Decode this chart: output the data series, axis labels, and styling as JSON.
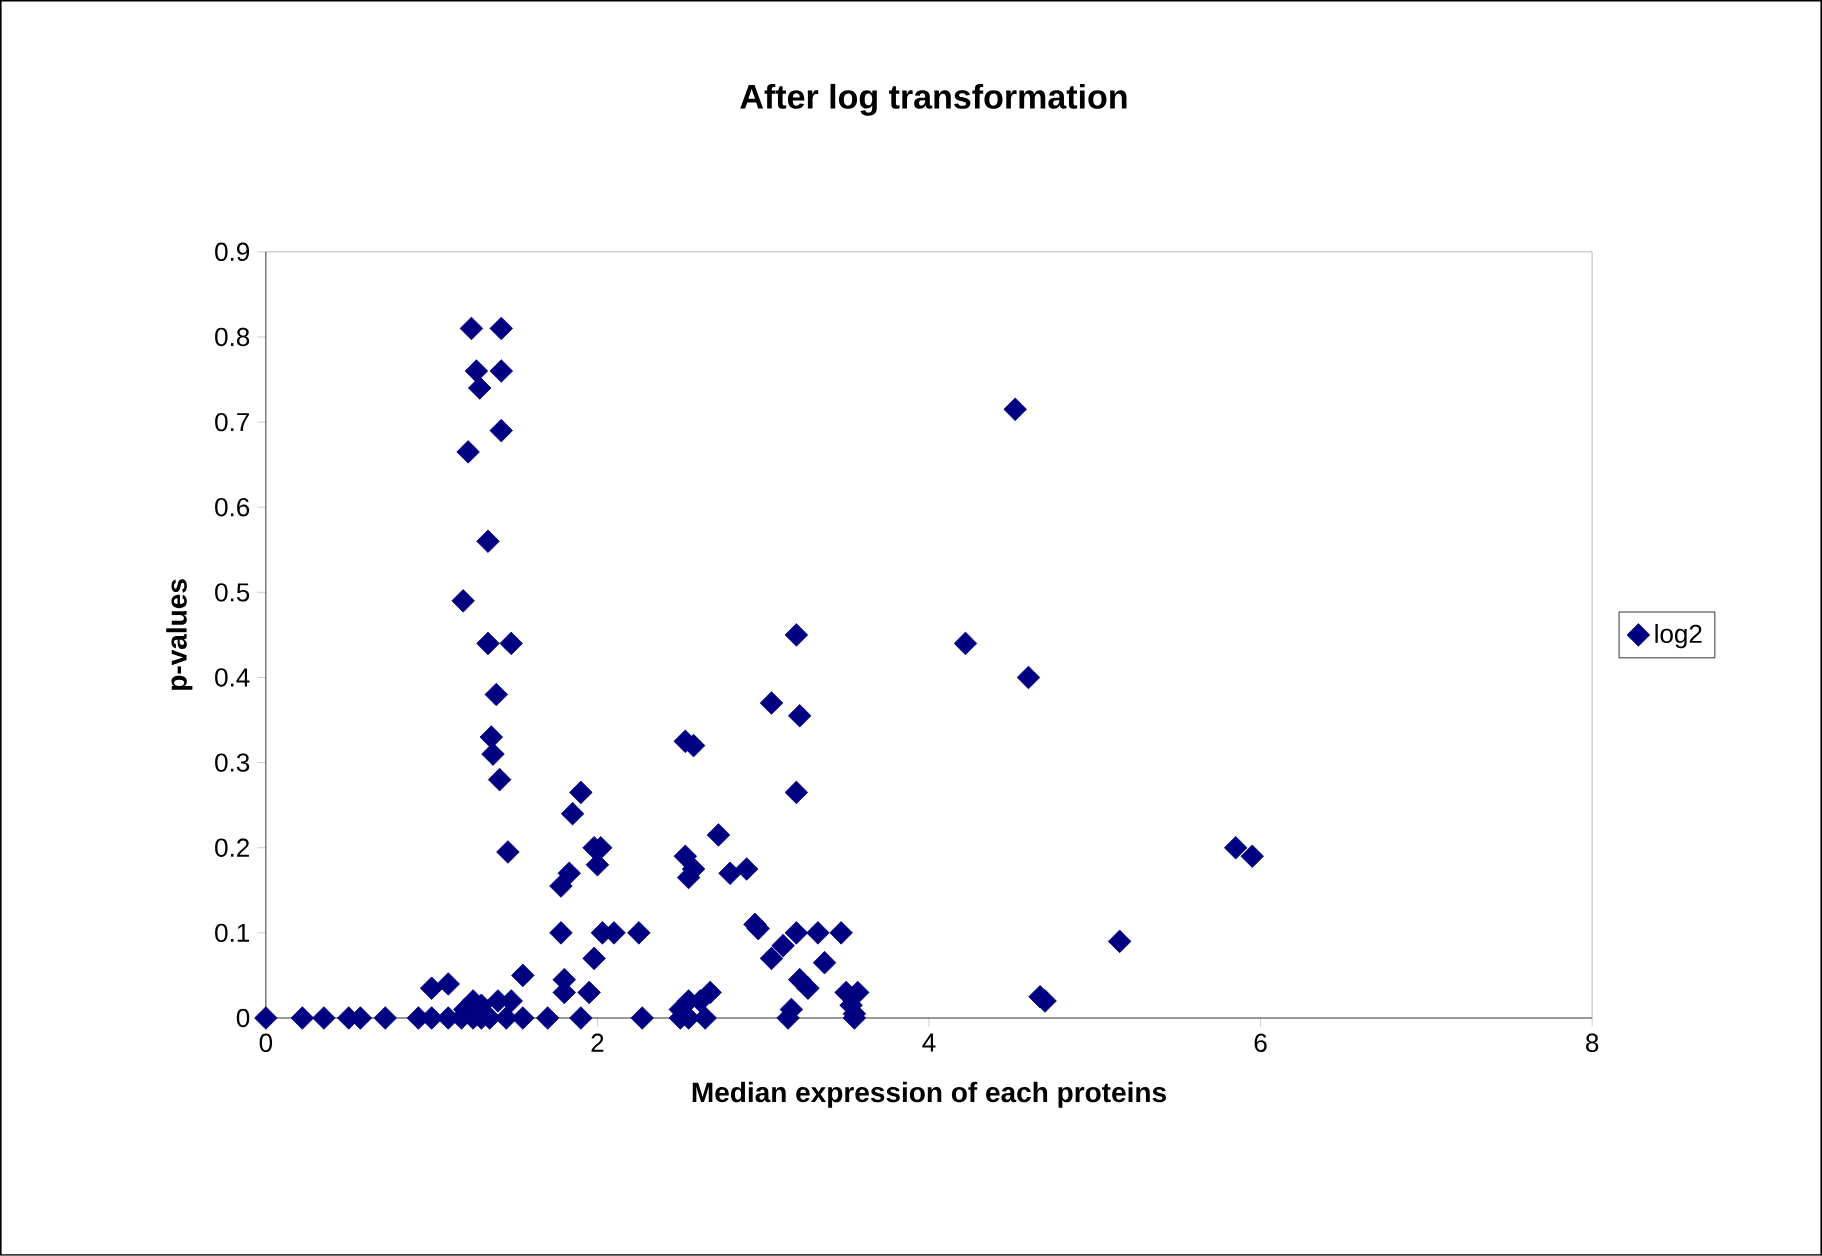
{
  "chart_data": {
    "type": "scatter",
    "title": "After log transformation",
    "xlabel": "Median expression of each proteins",
    "ylabel": "p-values",
    "xlim": [
      0,
      8
    ],
    "xticks": [
      0,
      2,
      4,
      6,
      8
    ],
    "ylim": [
      0,
      0.9
    ],
    "yticks": [
      0,
      0.1,
      0.2,
      0.3,
      0.4,
      0.5,
      0.6,
      0.7,
      0.8,
      0.9
    ],
    "grid": false,
    "legend": "right",
    "marker": "diamond",
    "series": [
      {
        "name": "log2",
        "color": "#000080",
        "x": [
          1.24,
          1.42,
          1.27,
          1.42,
          1.29,
          1.42,
          1.22,
          1.34,
          1.19,
          1.34,
          1.48,
          1.39,
          1.36,
          1.37,
          1.41,
          1.46,
          1.9,
          1.85,
          1.98,
          2.02,
          2.0,
          1.83,
          1.78,
          1.78,
          1.98,
          2.03,
          2.1,
          2.25,
          1.55,
          1.8,
          1.8,
          1.0,
          1.1,
          1.95,
          2.53,
          2.58,
          2.53,
          2.55,
          2.58,
          2.73,
          2.8,
          2.9,
          2.95,
          2.97,
          3.05,
          3.2,
          3.22,
          3.2,
          3.2,
          3.12,
          3.05,
          3.33,
          3.37,
          3.47,
          3.22,
          3.27,
          3.5,
          3.57,
          3.53,
          3.55,
          4.22,
          4.52,
          4.6,
          5.85,
          5.95,
          5.15,
          4.67,
          4.7,
          0,
          0.22,
          0.35,
          0.5,
          0.57,
          0.72,
          0.92,
          1.0,
          1.1,
          1.18,
          1.25,
          1.3,
          1.35,
          1.45,
          1.55,
          1.7,
          1.9,
          2.27,
          2.5,
          2.55,
          2.65,
          3.15,
          3.55,
          1.2,
          1.3,
          1.4,
          1.48,
          1.25,
          2.5,
          2.55,
          2.62,
          2.68,
          3.17
        ],
        "values": [
          0.81,
          0.81,
          0.76,
          0.76,
          0.74,
          0.69,
          0.665,
          0.56,
          0.49,
          0.44,
          0.44,
          0.38,
          0.33,
          0.31,
          0.28,
          0.195,
          0.265,
          0.24,
          0.2,
          0.2,
          0.18,
          0.17,
          0.155,
          0.1,
          0.07,
          0.1,
          0.1,
          0.1,
          0.05,
          0.045,
          0.03,
          0.035,
          0.04,
          0.03,
          0.325,
          0.32,
          0.19,
          0.165,
          0.175,
          0.215,
          0.17,
          0.175,
          0.11,
          0.105,
          0.37,
          0.45,
          0.355,
          0.265,
          0.1,
          0.085,
          0.07,
          0.1,
          0.065,
          0.1,
          0.045,
          0.035,
          0.03,
          0.03,
          0.015,
          0.005,
          0.44,
          0.715,
          0.4,
          0.2,
          0.19,
          0.09,
          0.025,
          0.02,
          0,
          0,
          0,
          0,
          0,
          0,
          0,
          0,
          0,
          0,
          0,
          0,
          0,
          0,
          0,
          0,
          0,
          0,
          0,
          0,
          0,
          0,
          0,
          0.01,
          0.015,
          0.02,
          0.02,
          0.02,
          0.01,
          0.02,
          0.02,
          0.03,
          0.01
        ]
      }
    ]
  }
}
